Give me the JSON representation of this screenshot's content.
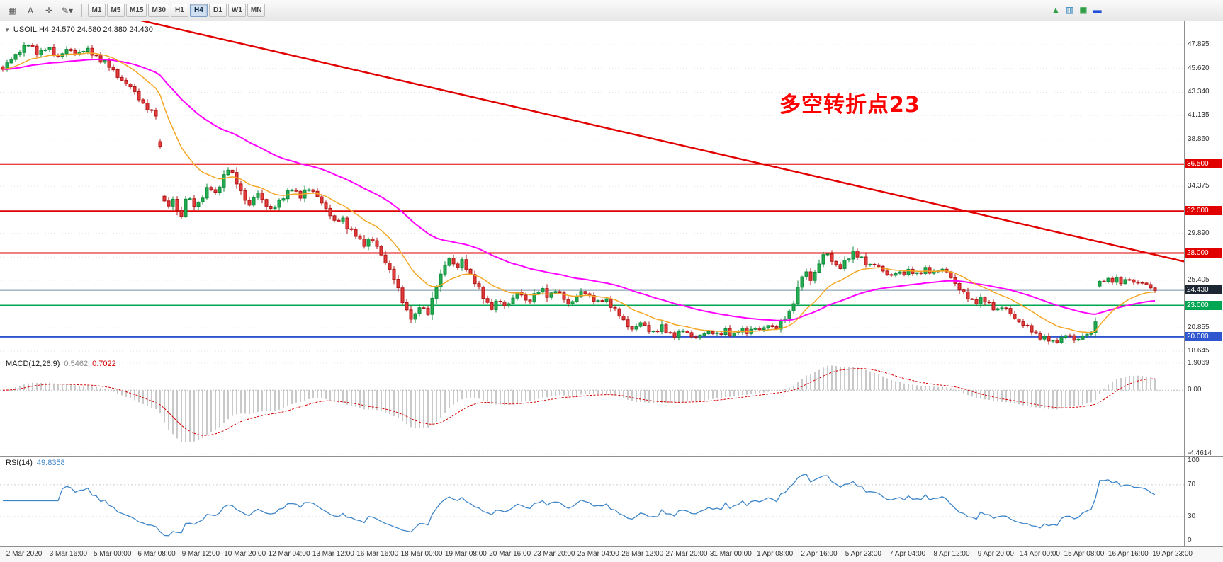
{
  "toolbar": {
    "tool_icons": [
      {
        "name": "charts-grid",
        "glyph": "▦"
      },
      {
        "name": "text-tool",
        "glyph": "A"
      },
      {
        "name": "crosshair",
        "glyph": "✛"
      },
      {
        "name": "drawing-tools-dropdown",
        "glyph": "✎▾"
      }
    ],
    "timeframes": [
      "M1",
      "M5",
      "M15",
      "M30",
      "H1",
      "H4",
      "D1",
      "W1",
      "MN"
    ],
    "active_timeframe": "H4",
    "mini_icons": [
      {
        "glyph": "▲",
        "color": "#2f9e44"
      },
      {
        "glyph": "▥",
        "color": "#1f7ab8"
      },
      {
        "glyph": "▣",
        "color": "#2f9e44"
      },
      {
        "glyph": "▬",
        "color": "#1f4fd8"
      }
    ]
  },
  "chart": {
    "title": "USOIL,H4 24.570 24.580 24.380 24.430",
    "annotation": {
      "text": "多空转折点23",
      "color": "#ff0000"
    }
  },
  "chart_data": {
    "type": "candlestick",
    "symbol": "USOIL",
    "timeframe": "H4",
    "ohlc": {
      "open": "24.570",
      "high": "24.580",
      "low": "24.380",
      "close": "24.430"
    },
    "y_axis": {
      "min": 18.0,
      "max": 50.13,
      "labels": [
        "47.895",
        "45.620",
        "43.340",
        "41.135",
        "38.860",
        "34.375",
        "29.890",
        "27.615",
        "25.405",
        "20.855",
        "18.645"
      ]
    },
    "price_path_keyframes": [
      [
        0.0,
        45.2
      ],
      [
        0.008,
        46.3
      ],
      [
        0.016,
        47.3
      ],
      [
        0.024,
        47.9
      ],
      [
        0.032,
        47.1
      ],
      [
        0.04,
        47.6
      ],
      [
        0.048,
        46.7
      ],
      [
        0.056,
        47.4
      ],
      [
        0.064,
        47.0
      ],
      [
        0.072,
        47.5
      ],
      [
        0.08,
        46.8
      ],
      [
        0.088,
        46.3
      ],
      [
        0.096,
        45.3
      ],
      [
        0.104,
        44.4
      ],
      [
        0.112,
        43.6
      ],
      [
        0.12,
        42.4
      ],
      [
        0.127,
        41.4
      ],
      [
        0.133,
        41.2
      ],
      [
        0.14,
        31.6
      ],
      [
        0.146,
        33.2
      ],
      [
        0.152,
        31.2
      ],
      [
        0.158,
        33.6
      ],
      [
        0.164,
        32.4
      ],
      [
        0.17,
        33.2
      ],
      [
        0.176,
        34.4
      ],
      [
        0.182,
        33.6
      ],
      [
        0.188,
        35.2
      ],
      [
        0.193,
        36.1
      ],
      [
        0.199,
        34.9
      ],
      [
        0.205,
        33.6
      ],
      [
        0.211,
        32.4
      ],
      [
        0.217,
        33.9
      ],
      [
        0.223,
        32.9
      ],
      [
        0.229,
        32.0
      ],
      [
        0.235,
        32.8
      ],
      [
        0.241,
        33.7
      ],
      [
        0.247,
        34.1
      ],
      [
        0.253,
        33.3
      ],
      [
        0.259,
        34.3
      ],
      [
        0.265,
        33.7
      ],
      [
        0.271,
        33.0
      ],
      [
        0.277,
        32.0
      ],
      [
        0.283,
        30.8
      ],
      [
        0.289,
        31.4
      ],
      [
        0.295,
        30.2
      ],
      [
        0.301,
        29.6
      ],
      [
        0.307,
        28.8
      ],
      [
        0.313,
        29.5
      ],
      [
        0.319,
        28.4
      ],
      [
        0.325,
        27.3
      ],
      [
        0.331,
        26.0
      ],
      [
        0.337,
        24.3
      ],
      [
        0.343,
        22.6
      ],
      [
        0.349,
        21.5
      ],
      [
        0.355,
        23.1
      ],
      [
        0.361,
        22.2
      ],
      [
        0.367,
        24.2
      ],
      [
        0.373,
        26.2
      ],
      [
        0.379,
        27.7
      ],
      [
        0.385,
        26.4
      ],
      [
        0.391,
        27.4
      ],
      [
        0.397,
        25.9
      ],
      [
        0.403,
        24.8
      ],
      [
        0.409,
        23.7
      ],
      [
        0.415,
        22.7
      ],
      [
        0.421,
        23.5
      ],
      [
        0.427,
        22.9
      ],
      [
        0.433,
        23.7
      ],
      [
        0.439,
        24.3
      ],
      [
        0.445,
        23.3
      ],
      [
        0.451,
        23.9
      ],
      [
        0.457,
        24.6
      ],
      [
        0.463,
        23.9
      ],
      [
        0.469,
        24.4
      ],
      [
        0.475,
        23.8
      ],
      [
        0.481,
        23.1
      ],
      [
        0.487,
        23.8
      ],
      [
        0.493,
        24.4
      ],
      [
        0.499,
        23.8
      ],
      [
        0.505,
        23.2
      ],
      [
        0.511,
        23.7
      ],
      [
        0.517,
        22.9
      ],
      [
        0.523,
        22.0
      ],
      [
        0.529,
        21.2
      ],
      [
        0.535,
        20.7
      ],
      [
        0.541,
        21.3
      ],
      [
        0.547,
        20.8
      ],
      [
        0.553,
        20.4
      ],
      [
        0.559,
        20.9
      ],
      [
        0.565,
        20.4
      ],
      [
        0.571,
        20.1
      ],
      [
        0.577,
        20.6
      ],
      [
        0.583,
        20.2
      ],
      [
        0.589,
        19.9
      ],
      [
        0.595,
        20.3
      ],
      [
        0.601,
        20.6
      ],
      [
        0.607,
        20.1
      ],
      [
        0.613,
        20.6
      ],
      [
        0.619,
        20.2
      ],
      [
        0.625,
        20.7
      ],
      [
        0.631,
        20.4
      ],
      [
        0.637,
        21.0
      ],
      [
        0.643,
        20.5
      ],
      [
        0.649,
        21.2
      ],
      [
        0.655,
        20.8
      ],
      [
        0.661,
        21.5
      ],
      [
        0.667,
        22.4
      ],
      [
        0.673,
        24.3
      ],
      [
        0.679,
        26.3
      ],
      [
        0.685,
        25.5
      ],
      [
        0.691,
        26.8
      ],
      [
        0.697,
        28.1
      ],
      [
        0.703,
        27.3
      ],
      [
        0.709,
        26.5
      ],
      [
        0.715,
        27.3
      ],
      [
        0.721,
        28.2
      ],
      [
        0.727,
        27.5
      ],
      [
        0.733,
        26.7
      ],
      [
        0.739,
        27.1
      ],
      [
        0.745,
        26.3
      ],
      [
        0.751,
        25.7
      ],
      [
        0.757,
        26.3
      ],
      [
        0.763,
        25.9
      ],
      [
        0.769,
        26.4
      ],
      [
        0.775,
        26.0
      ],
      [
        0.781,
        26.4
      ],
      [
        0.787,
        26.1
      ],
      [
        0.793,
        26.5
      ],
      [
        0.799,
        26.2
      ],
      [
        0.805,
        25.4
      ],
      [
        0.811,
        24.5
      ],
      [
        0.817,
        23.7
      ],
      [
        0.823,
        23.3
      ],
      [
        0.829,
        23.7
      ],
      [
        0.835,
        23.1
      ],
      [
        0.841,
        22.6
      ],
      [
        0.847,
        22.9
      ],
      [
        0.853,
        22.2
      ],
      [
        0.859,
        21.6
      ],
      [
        0.865,
        21.1
      ],
      [
        0.871,
        20.6
      ],
      [
        0.877,
        20.1
      ],
      [
        0.883,
        19.8
      ],
      [
        0.889,
        19.5
      ],
      [
        0.895,
        19.8
      ],
      [
        0.901,
        20.2
      ],
      [
        0.907,
        19.7
      ],
      [
        0.913,
        20.0
      ],
      [
        0.919,
        20.3
      ],
      [
        0.924,
        20.1
      ],
      [
        0.928,
        25.2
      ],
      [
        0.933,
        25.5
      ],
      [
        0.938,
        25.2
      ],
      [
        0.943,
        25.6
      ],
      [
        0.948,
        25.2
      ],
      [
        0.953,
        25.5
      ],
      [
        0.958,
        25.1
      ],
      [
        0.963,
        25.4
      ],
      [
        0.968,
        24.9
      ],
      [
        0.973,
        24.6
      ],
      [
        0.978,
        24.43
      ],
      [
        1.0,
        24.43
      ]
    ],
    "horizontal_lines": [
      {
        "price": 36.5,
        "label": "36.500",
        "color": "#e10000",
        "width": 2
      },
      {
        "price": 32.0,
        "label": "32.000",
        "color": "#e10000",
        "width": 2
      },
      {
        "price": 28.0,
        "label": "28.000",
        "color": "#e10000",
        "width": 2
      },
      {
        "price": 24.45,
        "label": null,
        "color": "#7390a8",
        "width": 1
      },
      {
        "price": 23.0,
        "label": "23.000",
        "color": "#00a651",
        "width": 2
      },
      {
        "price": 20.0,
        "label": "20.000",
        "color": "#2f55cf",
        "width": 2
      }
    ],
    "current_price": {
      "value": 24.43,
      "label": "24.430",
      "badge_color": "#1c2733"
    },
    "trendline": {
      "from": [
        0.05,
        52.0
      ],
      "to": [
        1.0,
        27.2
      ],
      "color": "#e10000",
      "width": 2.5
    },
    "moving_averages": [
      {
        "name": "fast-ma",
        "period": 16,
        "color": "#f5a623"
      },
      {
        "name": "slow-ma",
        "period": 50,
        "color": "#ff00ff"
      }
    ],
    "indicators": {
      "macd": {
        "label": "MACD(12,26,9)",
        "value_main": "0.5462",
        "value_signal": "0.7022",
        "axis_labels": [
          "1.9069",
          "0.00",
          "-4.4614"
        ],
        "histogram_color": "#b2b2b2",
        "signal_color": "#d40000"
      },
      "rsi": {
        "label": "RSI(14)",
        "value": "49.8358",
        "axis_labels": [
          "100",
          "70",
          "30",
          "0"
        ],
        "levels": [
          70,
          30
        ],
        "line_color": "#3d85c8"
      }
    }
  },
  "time_axis": {
    "first_fraction": 0.018,
    "step_fraction": 0.0373,
    "labels": [
      "2 Mar 2020",
      "3 Mar 16:00",
      "5 Mar 00:00",
      "6 Mar 08:00",
      "9 Mar 12:00",
      "10 Mar 20:00",
      "12 Mar 04:00",
      "13 Mar 12:00",
      "16 Mar 16:00",
      "18 Mar 00:00",
      "19 Mar 08:00",
      "20 Mar 16:00",
      "23 Mar 20:00",
      "25 Mar 04:00",
      "26 Mar 12:00",
      "27 Mar 20:00",
      "31 Mar 00:00",
      "1 Apr 08:00",
      "2 Apr 16:00",
      "5 Apr 23:00",
      "7 Apr 04:00",
      "8 Apr 12:00",
      "9 Apr 20:00",
      "14 Apr 00:00",
      "15 Apr 08:00",
      "16 Apr 16:00",
      "19 Apr 23:00"
    ]
  }
}
